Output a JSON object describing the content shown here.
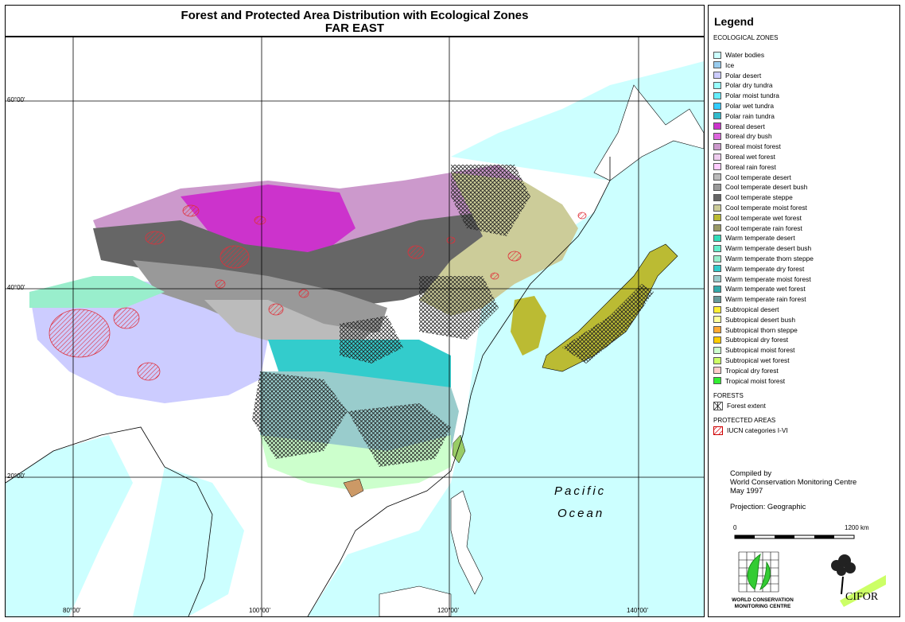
{
  "title": {
    "line1": "Forest and Protected Area Distribution with Ecological Zones",
    "line2": "FAR EAST"
  },
  "map": {
    "ocean_label_1": "Pacific",
    "ocean_label_2": "Ocean",
    "lat_labels": [
      "60°00'",
      "40°00'",
      "20°00'"
    ],
    "lon_labels": [
      "80°00'",
      "100°00'",
      "120°00'",
      "140°00'"
    ],
    "colors": {
      "sea": "#ccffff",
      "land_outside": "#ffffff",
      "graticule": "#000000",
      "protected": "#e0303a"
    }
  },
  "legend": {
    "title": "Legend",
    "ecological_zones_heading": "ECOLOGICAL ZONES",
    "zones": [
      {
        "label": "Water bodies",
        "color": "#ccffff"
      },
      {
        "label": "Ice",
        "color": "#99ccee"
      },
      {
        "label": "Polar desert",
        "color": "#ccccff"
      },
      {
        "label": "Polar dry tundra",
        "color": "#99ffff"
      },
      {
        "label": "Polar moist tundra",
        "color": "#66eeff"
      },
      {
        "label": "Polar wet tundra",
        "color": "#33ccff"
      },
      {
        "label": "Polar rain tundra",
        "color": "#33bbcc"
      },
      {
        "label": "Boreal desert",
        "color": "#cc33cc"
      },
      {
        "label": "Boreal dry bush",
        "color": "#dd66dd"
      },
      {
        "label": "Boreal moist forest",
        "color": "#cc99cc"
      },
      {
        "label": "Boreal wet forest",
        "color": "#eeccee"
      },
      {
        "label": "Boreal rain forest",
        "color": "#ffccff"
      },
      {
        "label": "Cool temperate desert",
        "color": "#bbbbbb"
      },
      {
        "label": "Cool temperate desert bush",
        "color": "#999999"
      },
      {
        "label": "Cool temperate steppe",
        "color": "#666666"
      },
      {
        "label": "Cool temperate moist forest",
        "color": "#cccc99"
      },
      {
        "label": "Cool temperate wet forest",
        "color": "#bbbb33"
      },
      {
        "label": "Cool temperate rain forest",
        "color": "#999966"
      },
      {
        "label": "Warm temperate desert",
        "color": "#33ddbb"
      },
      {
        "label": "Warm temperate desert bush",
        "color": "#66eecc"
      },
      {
        "label": "Warm temperate thorn steppe",
        "color": "#99eecc"
      },
      {
        "label": "Warm temperate dry forest",
        "color": "#33cccc"
      },
      {
        "label": "Warm temperate moist forest",
        "color": "#99cccc"
      },
      {
        "label": "Warm temperate wet forest",
        "color": "#33aaaa"
      },
      {
        "label": "Warm temperate rain forest",
        "color": "#669999"
      },
      {
        "label": "Subtropical desert",
        "color": "#ffee33"
      },
      {
        "label": "Subtropical desert bush",
        "color": "#ffff99"
      },
      {
        "label": "Subtropical thorn steppe",
        "color": "#ffaa33"
      },
      {
        "label": "Subtropical dry forest",
        "color": "#ffcc00"
      },
      {
        "label": "Subtropical moist forest",
        "color": "#ccffcc"
      },
      {
        "label": "Subtropical wet forest",
        "color": "#ccff66"
      },
      {
        "label": "Tropical dry forest",
        "color": "#ffcccc"
      },
      {
        "label": "Tropical moist forest",
        "color": "#33ee33"
      }
    ],
    "forests_heading": "FORESTS",
    "forest_label": "Forest extent",
    "protected_heading": "PROTECTED AREAS",
    "protected_label": "IUCN categories I-VI",
    "compiled": [
      "Compiled by",
      "World Conservation Monitoring Centre",
      "May 1997"
    ],
    "projection": "Projection: Geographic",
    "scale_start": "0",
    "scale_end": "1200 km",
    "wcmc_text": [
      "WORLD CONSERVATION",
      "MONITORING CENTRE"
    ],
    "cifor_text": "CIFOR"
  }
}
